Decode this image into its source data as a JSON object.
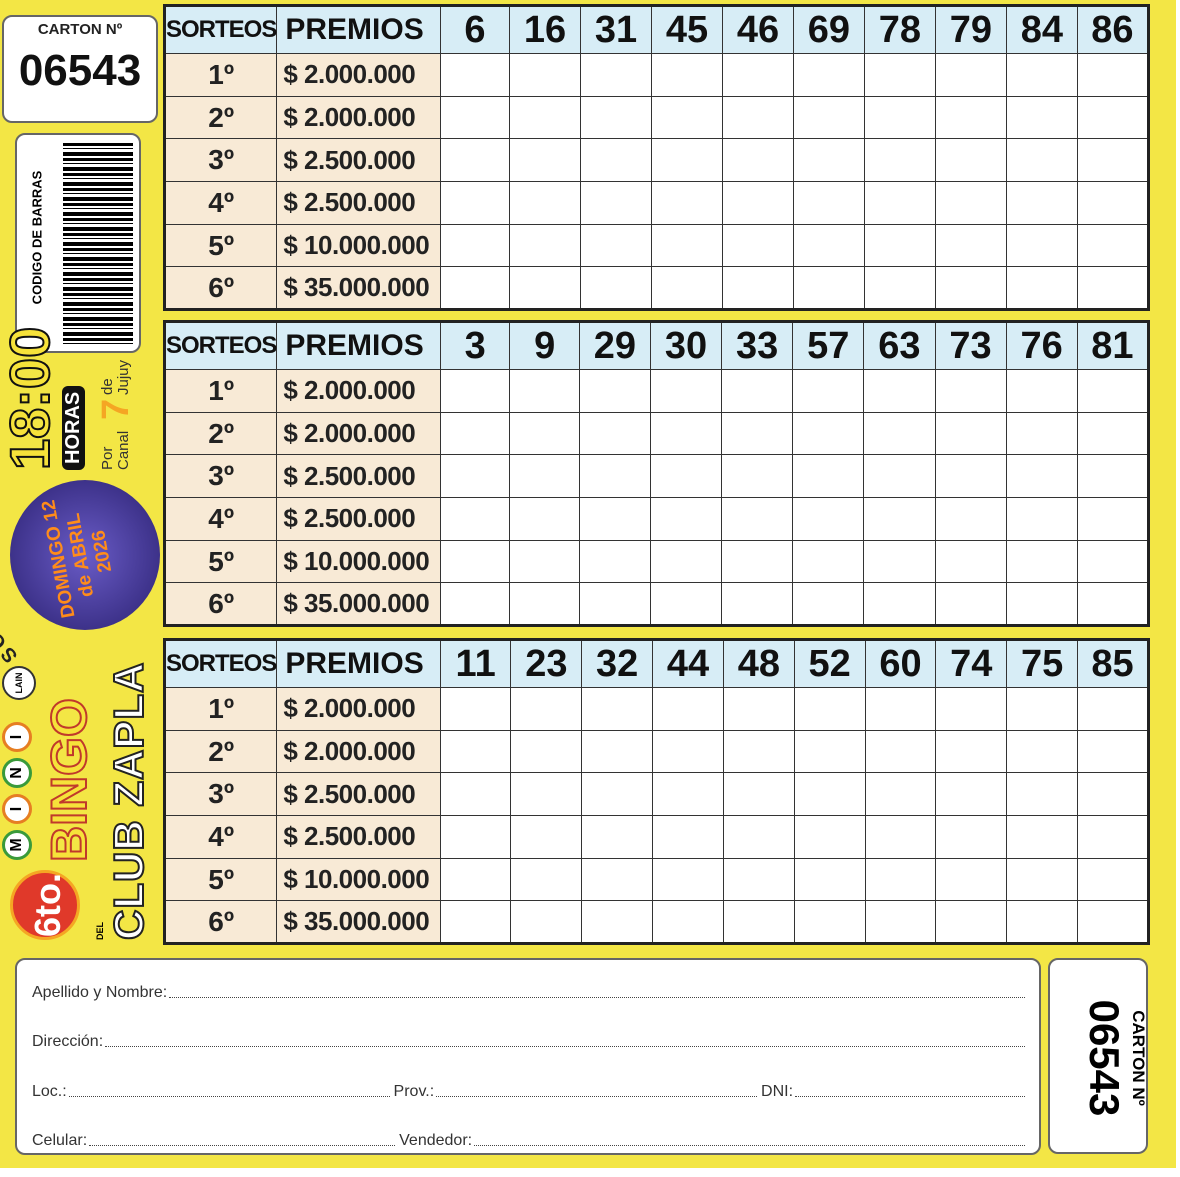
{
  "carton": {
    "label": "CARTON Nº",
    "number": "06543"
  },
  "barcode": {
    "label": "CODIGO DE BARRAS"
  },
  "promo": {
    "edition": "6to.",
    "mini_letters": [
      "M",
      "I",
      "N",
      "I"
    ],
    "bingo": "BINGO",
    "del": "DEL",
    "club": "CLUB ZAPLA",
    "lain": "LAIN",
    "sortea": "SORTEA",
    "date_lines": [
      "DOMINGO 12",
      "de ABRIL",
      "2026"
    ],
    "time": "18:00",
    "horas": "HORAS",
    "por_canal": "Por Canal",
    "canal_number": "7",
    "de_jujuy": "de Jujuy"
  },
  "colors": {
    "card": "#f3e645",
    "header": "#d7edf6",
    "prize_cell": "#f8ead6"
  },
  "grid_header": {
    "sorteos": "SORTEOS",
    "premios": "PREMIOS"
  },
  "draws": [
    {
      "ordinal": "1º",
      "prize": "$ 2.000.000"
    },
    {
      "ordinal": "2º",
      "prize": "$ 2.000.000"
    },
    {
      "ordinal": "3º",
      "prize": "$ 2.500.000"
    },
    {
      "ordinal": "4º",
      "prize": "$ 2.500.000"
    },
    {
      "ordinal": "5º",
      "prize": "$ 10.000.000"
    },
    {
      "ordinal": "6º",
      "prize": "$ 35.000.000"
    }
  ],
  "grids": [
    {
      "numbers": [
        "6",
        "16",
        "31",
        "45",
        "46",
        "69",
        "78",
        "79",
        "84",
        "86"
      ]
    },
    {
      "numbers": [
        "3",
        "9",
        "29",
        "30",
        "33",
        "57",
        "63",
        "73",
        "76",
        "81"
      ]
    },
    {
      "numbers": [
        "11",
        "23",
        "32",
        "44",
        "48",
        "52",
        "60",
        "74",
        "75",
        "85"
      ]
    }
  ],
  "form": {
    "nombre": "Apellido y Nombre:",
    "direccion": "Dirección:",
    "loc": "Loc.:",
    "prov": "Prov.:",
    "dni": "DNI:",
    "celular": "Celular:",
    "vendedor": "Vendedor:"
  }
}
